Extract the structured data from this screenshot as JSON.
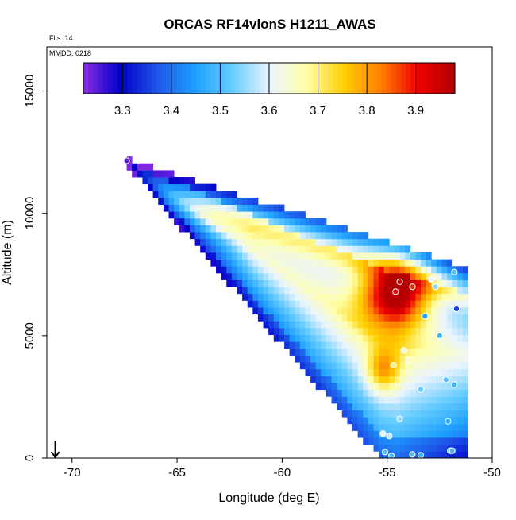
{
  "chart_data": {
    "type": "heatmap",
    "title": "ORCAS RF14vlonS H1211_AWAS",
    "flights_label": "Flts: 14",
    "date_label": "MMDD: 0218",
    "xlabel": "Longitude (deg E)",
    "ylabel": "Altitude (m)",
    "xlim": [
      -71.2,
      -50
    ],
    "ylim": [
      0,
      16800
    ],
    "xticks": [
      -70,
      -65,
      -60,
      -55,
      -50
    ],
    "yticks": [
      0,
      5000,
      10000,
      15000
    ],
    "colorbar": {
      "range": [
        3.22,
        3.98
      ],
      "ticks": [
        3.3,
        3.4,
        3.5,
        3.6,
        3.7,
        3.8,
        3.9
      ],
      "colors": [
        "#8a2be2",
        "#0000c8",
        "#1e56e8",
        "#1ea0ff",
        "#66ccff",
        "#eaf4ff",
        "#ffffaa",
        "#ffd000",
        "#ff8000",
        "#f00000",
        "#b00000"
      ]
    },
    "field": {
      "apex": [
        -67.4,
        12100
      ],
      "upper_edge_end": [
        -51.3,
        7700
      ],
      "lower_edge_end": [
        -55.2,
        0
      ],
      "right_edge_lon": -51.2,
      "peak": [
        -54.6,
        6700
      ],
      "peak_value": 3.95,
      "secondary_peak": [
        -55.2,
        3600
      ],
      "secondary_value": 3.73
    },
    "samples": [
      {
        "lon": -54.4,
        "alt": 7200,
        "value": 3.95
      },
      {
        "lon": -53.8,
        "alt": 7000,
        "value": 3.88
      },
      {
        "lon": -52.9,
        "alt": 7300,
        "value": 3.6
      },
      {
        "lon": -52.7,
        "alt": 7000,
        "value": 3.55
      },
      {
        "lon": -51.8,
        "alt": 7600,
        "value": 3.5
      },
      {
        "lon": -54.6,
        "alt": 6800,
        "value": 3.93
      },
      {
        "lon": -51.7,
        "alt": 6100,
        "value": 3.35
      },
      {
        "lon": -53.2,
        "alt": 5800,
        "value": 3.45
      },
      {
        "lon": -52.5,
        "alt": 5000,
        "value": 3.48
      },
      {
        "lon": -54.2,
        "alt": 4400,
        "value": 3.62
      },
      {
        "lon": -54.0,
        "alt": 4000,
        "value": 3.65
      },
      {
        "lon": -54.7,
        "alt": 3800,
        "value": 3.7
      },
      {
        "lon": -52.2,
        "alt": 3200,
        "value": 3.5
      },
      {
        "lon": -51.8,
        "alt": 3000,
        "value": 3.48
      },
      {
        "lon": -53.4,
        "alt": 2800,
        "value": 3.52
      },
      {
        "lon": -54.4,
        "alt": 1600,
        "value": 3.55
      },
      {
        "lon": -52.1,
        "alt": 1500,
        "value": 3.47
      },
      {
        "lon": -55.2,
        "alt": 1000,
        "value": 3.6
      },
      {
        "lon": -54.9,
        "alt": 900,
        "value": 3.58
      },
      {
        "lon": -55.1,
        "alt": 250,
        "value": 3.5
      },
      {
        "lon": -54.8,
        "alt": 100,
        "value": 3.5
      },
      {
        "lon": -53.8,
        "alt": 150,
        "value": 3.5
      },
      {
        "lon": -53.4,
        "alt": 120,
        "value": 3.48
      },
      {
        "lon": -52.0,
        "alt": 300,
        "value": 3.5
      },
      {
        "lon": -51.9,
        "alt": 300,
        "value": 3.5
      },
      {
        "lon": -67.4,
        "alt": 12150,
        "value": 3.25
      }
    ],
    "arrow": {
      "lon": -70.8,
      "alt": 700,
      "direction": "down"
    }
  }
}
